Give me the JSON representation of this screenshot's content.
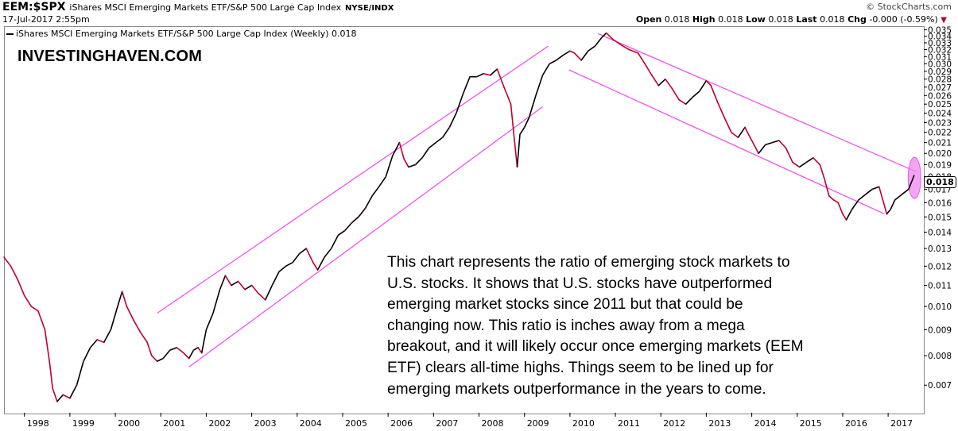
{
  "header": {
    "symbol": "EEM:$SPX",
    "full_name": "iShares MSCI Emerging Markets ETF/S&P 500 Large Cap Index",
    "exchange": "NYSE/INDX",
    "datetime": "17-Jul-2017 2:55pm",
    "copyright": "© StockCharts.com",
    "ohlc": {
      "open_label": "Open",
      "open": "0.018",
      "high_label": "High",
      "high": "0.018",
      "low_label": "Low",
      "low": "0.018",
      "last_label": "Last",
      "last": "0.018",
      "chg_label": "Chg",
      "chg": "-0.000 (-0.59%)"
    }
  },
  "legend": "iShares MSCI Emerging Markets ETF/S&P 500 Large Cap Index (Weekly) 0.018",
  "watermark": "INVESTINGHAVEN.COM",
  "annotation": "This  chart represents the ratio of emerging stock markets to\nU.S. stocks. It shows that U.S. stocks have outperformed\nemerging market stocks since 2011 but that could be\nchanging now. This ratio is inches away from a mega\nbreakout, and it will likely occur once emerging markets (EEM\nETF) clears all-time highs. Things seem to be lined up for\nemerging markets outperformance in the years to come.",
  "last_value_label": "0.018",
  "colors": {
    "price_up": "#000000",
    "price_down": "#c0002a",
    "channel": "#ee55ee",
    "highlight": "#ee88ee"
  },
  "chart_data": {
    "type": "line",
    "scale": "log",
    "ylim": [
      0.0062,
      0.0352
    ],
    "xlim": [
      1997.55,
      2017.75
    ],
    "y_ticks": [
      0.007,
      0.008,
      0.009,
      0.01,
      0.011,
      0.012,
      0.013,
      0.014,
      0.015,
      0.016,
      0.017,
      0.018,
      0.019,
      0.02,
      0.021,
      0.022,
      0.023,
      0.024,
      0.025,
      0.026,
      0.027,
      0.028,
      0.029,
      0.03,
      0.031,
      0.032,
      0.033,
      0.034,
      0.035
    ],
    "x_ticks": [
      1998,
      1999,
      2000,
      2001,
      2002,
      2003,
      2004,
      2005,
      2006,
      2007,
      2008,
      2009,
      2010,
      2011,
      2012,
      2013,
      2014,
      2015,
      2016,
      2017
    ],
    "series": [
      {
        "values": [
          [
            1997.55,
            0.0125
          ],
          [
            1997.7,
            0.012
          ],
          [
            1997.85,
            0.0113
          ],
          [
            1998.0,
            0.0105
          ],
          [
            1998.15,
            0.01
          ],
          [
            1998.3,
            0.0098
          ],
          [
            1998.45,
            0.009
          ],
          [
            1998.55,
            0.0078
          ],
          [
            1998.62,
            0.0069
          ],
          [
            1998.72,
            0.0065
          ],
          [
            1998.85,
            0.0067
          ],
          [
            1999.0,
            0.0066
          ],
          [
            1999.15,
            0.007
          ],
          [
            1999.3,
            0.0078
          ],
          [
            1999.45,
            0.0083
          ],
          [
            1999.6,
            0.0086
          ],
          [
            1999.75,
            0.0085
          ],
          [
            1999.9,
            0.009
          ],
          [
            2000.05,
            0.01
          ],
          [
            2000.15,
            0.0107
          ],
          [
            2000.25,
            0.01
          ],
          [
            2000.4,
            0.0094
          ],
          [
            2000.55,
            0.0089
          ],
          [
            2000.7,
            0.0085
          ],
          [
            2000.8,
            0.008
          ],
          [
            2000.92,
            0.0078
          ],
          [
            2001.05,
            0.0079
          ],
          [
            2001.2,
            0.0082
          ],
          [
            2001.35,
            0.0083
          ],
          [
            2001.5,
            0.0081
          ],
          [
            2001.62,
            0.0079
          ],
          [
            2001.72,
            0.0082
          ],
          [
            2001.82,
            0.0083
          ],
          [
            2001.9,
            0.0081
          ],
          [
            2002.0,
            0.009
          ],
          [
            2002.15,
            0.0097
          ],
          [
            2002.3,
            0.0108
          ],
          [
            2002.42,
            0.0115
          ],
          [
            2002.55,
            0.011
          ],
          [
            2002.7,
            0.0112
          ],
          [
            2002.85,
            0.0108
          ],
          [
            2003.0,
            0.011
          ],
          [
            2003.15,
            0.0106
          ],
          [
            2003.3,
            0.0103
          ],
          [
            2003.45,
            0.011
          ],
          [
            2003.6,
            0.0117
          ],
          [
            2003.75,
            0.012
          ],
          [
            2003.9,
            0.0122
          ],
          [
            2004.05,
            0.0127
          ],
          [
            2004.2,
            0.013
          ],
          [
            2004.35,
            0.0122
          ],
          [
            2004.45,
            0.0118
          ],
          [
            2004.6,
            0.0125
          ],
          [
            2004.75,
            0.013
          ],
          [
            2004.9,
            0.0138
          ],
          [
            2005.05,
            0.0141
          ],
          [
            2005.2,
            0.0146
          ],
          [
            2005.35,
            0.015
          ],
          [
            2005.5,
            0.0156
          ],
          [
            2005.65,
            0.0165
          ],
          [
            2005.8,
            0.0172
          ],
          [
            2005.95,
            0.018
          ],
          [
            2006.1,
            0.0198
          ],
          [
            2006.25,
            0.021
          ],
          [
            2006.35,
            0.0195
          ],
          [
            2006.45,
            0.0188
          ],
          [
            2006.6,
            0.019
          ],
          [
            2006.75,
            0.0196
          ],
          [
            2006.9,
            0.0205
          ],
          [
            2007.05,
            0.021
          ],
          [
            2007.2,
            0.0215
          ],
          [
            2007.35,
            0.0225
          ],
          [
            2007.5,
            0.024
          ],
          [
            2007.65,
            0.0262
          ],
          [
            2007.8,
            0.0283
          ],
          [
            2007.95,
            0.0283
          ],
          [
            2008.1,
            0.0287
          ],
          [
            2008.25,
            0.0285
          ],
          [
            2008.4,
            0.0293
          ],
          [
            2008.55,
            0.027
          ],
          [
            2008.7,
            0.025
          ],
          [
            2008.78,
            0.0212
          ],
          [
            2008.84,
            0.0188
          ],
          [
            2008.9,
            0.0218
          ],
          [
            2009.0,
            0.0225
          ],
          [
            2009.1,
            0.0235
          ],
          [
            2009.25,
            0.026
          ],
          [
            2009.4,
            0.0285
          ],
          [
            2009.55,
            0.03
          ],
          [
            2009.7,
            0.0305
          ],
          [
            2009.85,
            0.0312
          ],
          [
            2010.0,
            0.0318
          ],
          [
            2010.1,
            0.0315
          ],
          [
            2010.25,
            0.0305
          ],
          [
            2010.4,
            0.0318
          ],
          [
            2010.55,
            0.0325
          ],
          [
            2010.7,
            0.0338
          ],
          [
            2010.8,
            0.0345
          ],
          [
            2010.95,
            0.0335
          ],
          [
            2011.1,
            0.0328
          ],
          [
            2011.3,
            0.032
          ],
          [
            2011.5,
            0.0315
          ],
          [
            2011.65,
            0.03
          ],
          [
            2011.8,
            0.0285
          ],
          [
            2011.95,
            0.0272
          ],
          [
            2012.1,
            0.028
          ],
          [
            2012.25,
            0.0268
          ],
          [
            2012.4,
            0.0255
          ],
          [
            2012.55,
            0.025
          ],
          [
            2012.7,
            0.0258
          ],
          [
            2012.85,
            0.0265
          ],
          [
            2013.0,
            0.0278
          ],
          [
            2013.1,
            0.0272
          ],
          [
            2013.25,
            0.0252
          ],
          [
            2013.4,
            0.0235
          ],
          [
            2013.55,
            0.022
          ],
          [
            2013.7,
            0.0215
          ],
          [
            2013.85,
            0.0225
          ],
          [
            2014.0,
            0.0212
          ],
          [
            2014.15,
            0.02
          ],
          [
            2014.3,
            0.0208
          ],
          [
            2014.45,
            0.021
          ],
          [
            2014.6,
            0.0212
          ],
          [
            2014.75,
            0.0205
          ],
          [
            2014.9,
            0.0192
          ],
          [
            2015.05,
            0.0188
          ],
          [
            2015.2,
            0.0192
          ],
          [
            2015.35,
            0.0196
          ],
          [
            2015.5,
            0.019
          ],
          [
            2015.6,
            0.0178
          ],
          [
            2015.7,
            0.0165
          ],
          [
            2015.8,
            0.0162
          ],
          [
            2015.9,
            0.016
          ],
          [
            2016.0,
            0.0152
          ],
          [
            2016.08,
            0.0148
          ],
          [
            2016.2,
            0.0155
          ],
          [
            2016.35,
            0.0162
          ],
          [
            2016.5,
            0.0166
          ],
          [
            2016.65,
            0.017
          ],
          [
            2016.8,
            0.0172
          ],
          [
            2016.9,
            0.016
          ],
          [
            2016.97,
            0.0152
          ],
          [
            2017.05,
            0.0155
          ],
          [
            2017.15,
            0.0162
          ],
          [
            2017.3,
            0.0166
          ],
          [
            2017.45,
            0.017
          ],
          [
            2017.54,
            0.0178
          ],
          [
            2017.57,
            0.0181
          ]
        ]
      }
    ],
    "annotations": [
      {
        "type": "channel_line",
        "from": [
          2000.92,
          0.0097
        ],
        "to": [
          2009.52,
          0.0325
        ]
      },
      {
        "type": "channel_line",
        "from": [
          2001.62,
          0.0076
        ],
        "to": [
          2009.4,
          0.0247
        ]
      },
      {
        "type": "channel_line",
        "from": [
          2010.62,
          0.0344
        ],
        "to": [
          2017.62,
          0.0184
        ]
      },
      {
        "type": "channel_line",
        "from": [
          2009.98,
          0.0292
        ],
        "to": [
          2016.92,
          0.0152
        ]
      },
      {
        "type": "highlight_ellipse",
        "at": [
          2017.58,
          0.0179
        ]
      }
    ],
    "grid": false,
    "legend": "top-left"
  }
}
